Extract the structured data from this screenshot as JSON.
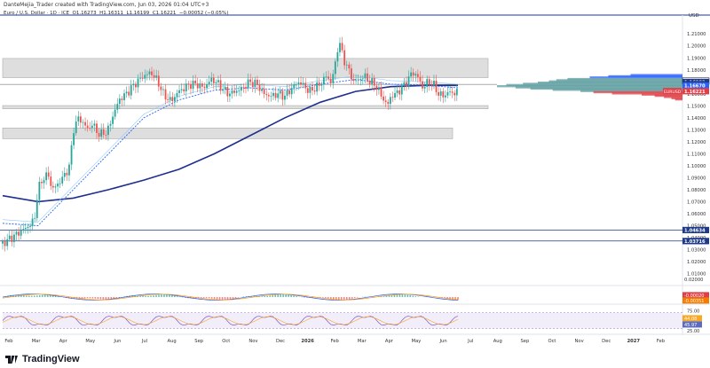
{
  "header": {
    "published": "DanteMejia_Trader created with TradingView.com, Jun 03, 2026 01:04 UTC+3",
    "symbol": "Euro / U.S. Dollar · 1D · ICE",
    "ohlc": {
      "o": "O1.16273",
      "h": "H1.16311",
      "l": "L1.16199",
      "c": "C1.16221",
      "chg": "−0.00052 (−0.05%)"
    }
  },
  "brand": {
    "name": "TradingView"
  },
  "colors": {
    "up": "#26a69a",
    "down": "#ef5350",
    "ema_fast": "#2962ff",
    "ema_slow": "#1e2f8f",
    "accent_red": "#e03f47",
    "price_tag_dark": "#1e3a8a",
    "zone": "#d9d9d9"
  },
  "chart_data": [
    {
      "type": "candlestick",
      "title": "Euro / U.S. Dollar · 1D · ICE",
      "currency": "USD",
      "y_ticks": [
        1.21,
        1.2,
        1.19,
        1.18,
        1.17,
        1.16,
        1.15,
        1.14,
        1.13,
        1.12,
        1.11,
        1.1,
        1.09,
        1.08,
        1.07,
        1.06,
        1.05,
        1.04,
        1.03,
        1.02,
        1.01
      ],
      "ylim": [
        1.003,
        1.222
      ],
      "x_labels": [
        "Feb",
        "Mar",
        "Apr",
        "May",
        "Jun",
        "Jul",
        "Aug",
        "Sep",
        "Oct",
        "Nov",
        "Dec",
        "2026",
        "Feb",
        "Mar",
        "Apr",
        "May",
        "Jun",
        "Jul",
        "Aug",
        "Sep",
        "Oct",
        "Nov",
        "Dec",
        "2027",
        "Feb"
      ],
      "price_tags": [
        {
          "label": "1.17064",
          "value": 1.17064,
          "style": "outline-dark"
        },
        {
          "label": "1.16983",
          "value": 1.16983,
          "style": "dark"
        },
        {
          "label": "1.16808",
          "value": 1.16808,
          "style": "dark"
        },
        {
          "label": "1.16670",
          "value": 1.1667,
          "style": "blue"
        },
        {
          "label": "1.16221",
          "value": 1.16221,
          "style": "red",
          "symbol": "EURUSD"
        },
        {
          "label": "1.04634",
          "value": 1.04634,
          "style": "dark"
        },
        {
          "label": "1.03716",
          "value": 1.03716,
          "style": "dark"
        }
      ],
      "zones": [
        {
          "from": 1.1735,
          "to": 1.1895
        },
        {
          "from": 1.1475,
          "to": 1.1502
        },
        {
          "from": 1.1225,
          "to": 1.1315
        }
      ],
      "h_lines": [
        1.2175,
        1.0463,
        1.0372,
        1.1679
      ],
      "price_path": [
        [
          0,
          1.035
        ],
        [
          10,
          1.04
        ],
        [
          20,
          1.045
        ],
        [
          30,
          1.05
        ],
        [
          36,
          1.055
        ],
        [
          40,
          1.08
        ],
        [
          46,
          1.09
        ],
        [
          52,
          1.092
        ],
        [
          56,
          1.08
        ],
        [
          63,
          1.085
        ],
        [
          70,
          1.092
        ],
        [
          76,
          1.1
        ],
        [
          80,
          1.13
        ],
        [
          86,
          1.14
        ],
        [
          92,
          1.135
        ],
        [
          97,
          1.13
        ],
        [
          101,
          1.135
        ],
        [
          106,
          1.13
        ],
        [
          110,
          1.125
        ],
        [
          114,
          1.128
        ],
        [
          118,
          1.127
        ],
        [
          124,
          1.14
        ],
        [
          132,
          1.155
        ],
        [
          140,
          1.16
        ],
        [
          146,
          1.165
        ],
        [
          152,
          1.17
        ],
        [
          160,
          1.175
        ],
        [
          168,
          1.178
        ],
        [
          176,
          1.17
        ],
        [
          182,
          1.16
        ],
        [
          188,
          1.155
        ],
        [
          194,
          1.155
        ],
        [
          196,
          1.16
        ],
        [
          200,
          1.162
        ],
        [
          206,
          1.165
        ],
        [
          212,
          1.168
        ],
        [
          220,
          1.168
        ],
        [
          228,
          1.165
        ],
        [
          236,
          1.172
        ],
        [
          242,
          1.17
        ],
        [
          248,
          1.165
        ],
        [
          256,
          1.16
        ],
        [
          264,
          1.162
        ],
        [
          272,
          1.165
        ],
        [
          280,
          1.17
        ],
        [
          288,
          1.168
        ],
        [
          296,
          1.16
        ],
        [
          304,
          1.158
        ],
        [
          312,
          1.16
        ],
        [
          320,
          1.158
        ],
        [
          328,
          1.165
        ],
        [
          336,
          1.17
        ],
        [
          342,
          1.166
        ],
        [
          348,
          1.162
        ],
        [
          354,
          1.165
        ],
        [
          360,
          1.168
        ],
        [
          366,
          1.175
        ],
        [
          372,
          1.17
        ],
        [
          376,
          1.18
        ],
        [
          381,
          1.205
        ],
        [
          386,
          1.19
        ],
        [
          392,
          1.18
        ],
        [
          398,
          1.17
        ],
        [
          404,
          1.172
        ],
        [
          410,
          1.175
        ],
        [
          416,
          1.17
        ],
        [
          422,
          1.168
        ],
        [
          428,
          1.16
        ],
        [
          432,
          1.155
        ],
        [
          436,
          1.15
        ],
        [
          440,
          1.158
        ],
        [
          446,
          1.16
        ],
        [
          452,
          1.165
        ],
        [
          458,
          1.17
        ],
        [
          464,
          1.178
        ],
        [
          470,
          1.175
        ],
        [
          476,
          1.165
        ],
        [
          482,
          1.17
        ],
        [
          488,
          1.168
        ],
        [
          494,
          1.16
        ],
        [
          500,
          1.158
        ],
        [
          506,
          1.162
        ],
        [
          510,
          1.16
        ],
        [
          516,
          1.163
        ]
      ],
      "ema_fast": [
        [
          0,
          1.052
        ],
        [
          40,
          1.05
        ],
        [
          80,
          1.08
        ],
        [
          120,
          1.11
        ],
        [
          160,
          1.14
        ],
        [
          200,
          1.155
        ],
        [
          240,
          1.163
        ],
        [
          280,
          1.165
        ],
        [
          320,
          1.163
        ],
        [
          360,
          1.168
        ],
        [
          400,
          1.172
        ],
        [
          440,
          1.168
        ],
        [
          480,
          1.167
        ],
        [
          516,
          1.165
        ]
      ],
      "ema_slow": [
        [
          0,
          1.075
        ],
        [
          40,
          1.07
        ],
        [
          80,
          1.073
        ],
        [
          120,
          1.08
        ],
        [
          160,
          1.088
        ],
        [
          200,
          1.097
        ],
        [
          240,
          1.11
        ],
        [
          280,
          1.125
        ],
        [
          320,
          1.14
        ],
        [
          360,
          1.153
        ],
        [
          400,
          1.162
        ],
        [
          440,
          1.166
        ],
        [
          480,
          1.167
        ],
        [
          516,
          1.167
        ]
      ],
      "volume_profile": [
        {
          "price": 1.1755,
          "value": 0.28
        },
        {
          "price": 1.1745,
          "value": 0.4
        },
        {
          "price": 1.1735,
          "value": 0.5
        },
        {
          "price": 1.1722,
          "value": 0.62
        },
        {
          "price": 1.1712,
          "value": 0.68
        },
        {
          "price": 1.1702,
          "value": 0.72
        },
        {
          "price": 1.1692,
          "value": 0.78
        },
        {
          "price": 1.1682,
          "value": 0.86
        },
        {
          "price": 1.1672,
          "value": 0.95
        },
        {
          "price": 1.1662,
          "value": 1.0
        },
        {
          "price": 1.1652,
          "value": 0.9
        },
        {
          "price": 1.1642,
          "value": 0.82
        },
        {
          "price": 1.1632,
          "value": 0.7
        },
        {
          "price": 1.1622,
          "value": 0.55
        },
        {
          "price": 1.1612,
          "value": 0.48
        },
        {
          "price": 1.1602,
          "value": 0.38
        },
        {
          "price": 1.1592,
          "value": 0.22
        },
        {
          "price": 1.1582,
          "value": 0.15
        },
        {
          "price": 1.1572,
          "value": 0.1
        },
        {
          "price": 1.1562,
          "value": 0.06
        },
        {
          "price": 1.1552,
          "value": 0.04
        }
      ]
    },
    {
      "type": "line",
      "title": "MACD",
      "labels": [
        {
          "label": "-0.00020",
          "style": "red"
        },
        {
          "label": "-0.00351",
          "style": "orange"
        }
      ],
      "y_ticks": [
        "0.02000"
      ],
      "ylim": [
        -0.01,
        0.02
      ]
    },
    {
      "type": "line",
      "title": "RSI",
      "labels": [
        {
          "label": "44.08",
          "style": "yellow"
        },
        {
          "label": "45.97",
          "style": "blue"
        }
      ],
      "y_ticks": [
        75.0,
        25.0
      ],
      "ylim": [
        20,
        85
      ],
      "band": [
        30,
        70
      ]
    }
  ]
}
